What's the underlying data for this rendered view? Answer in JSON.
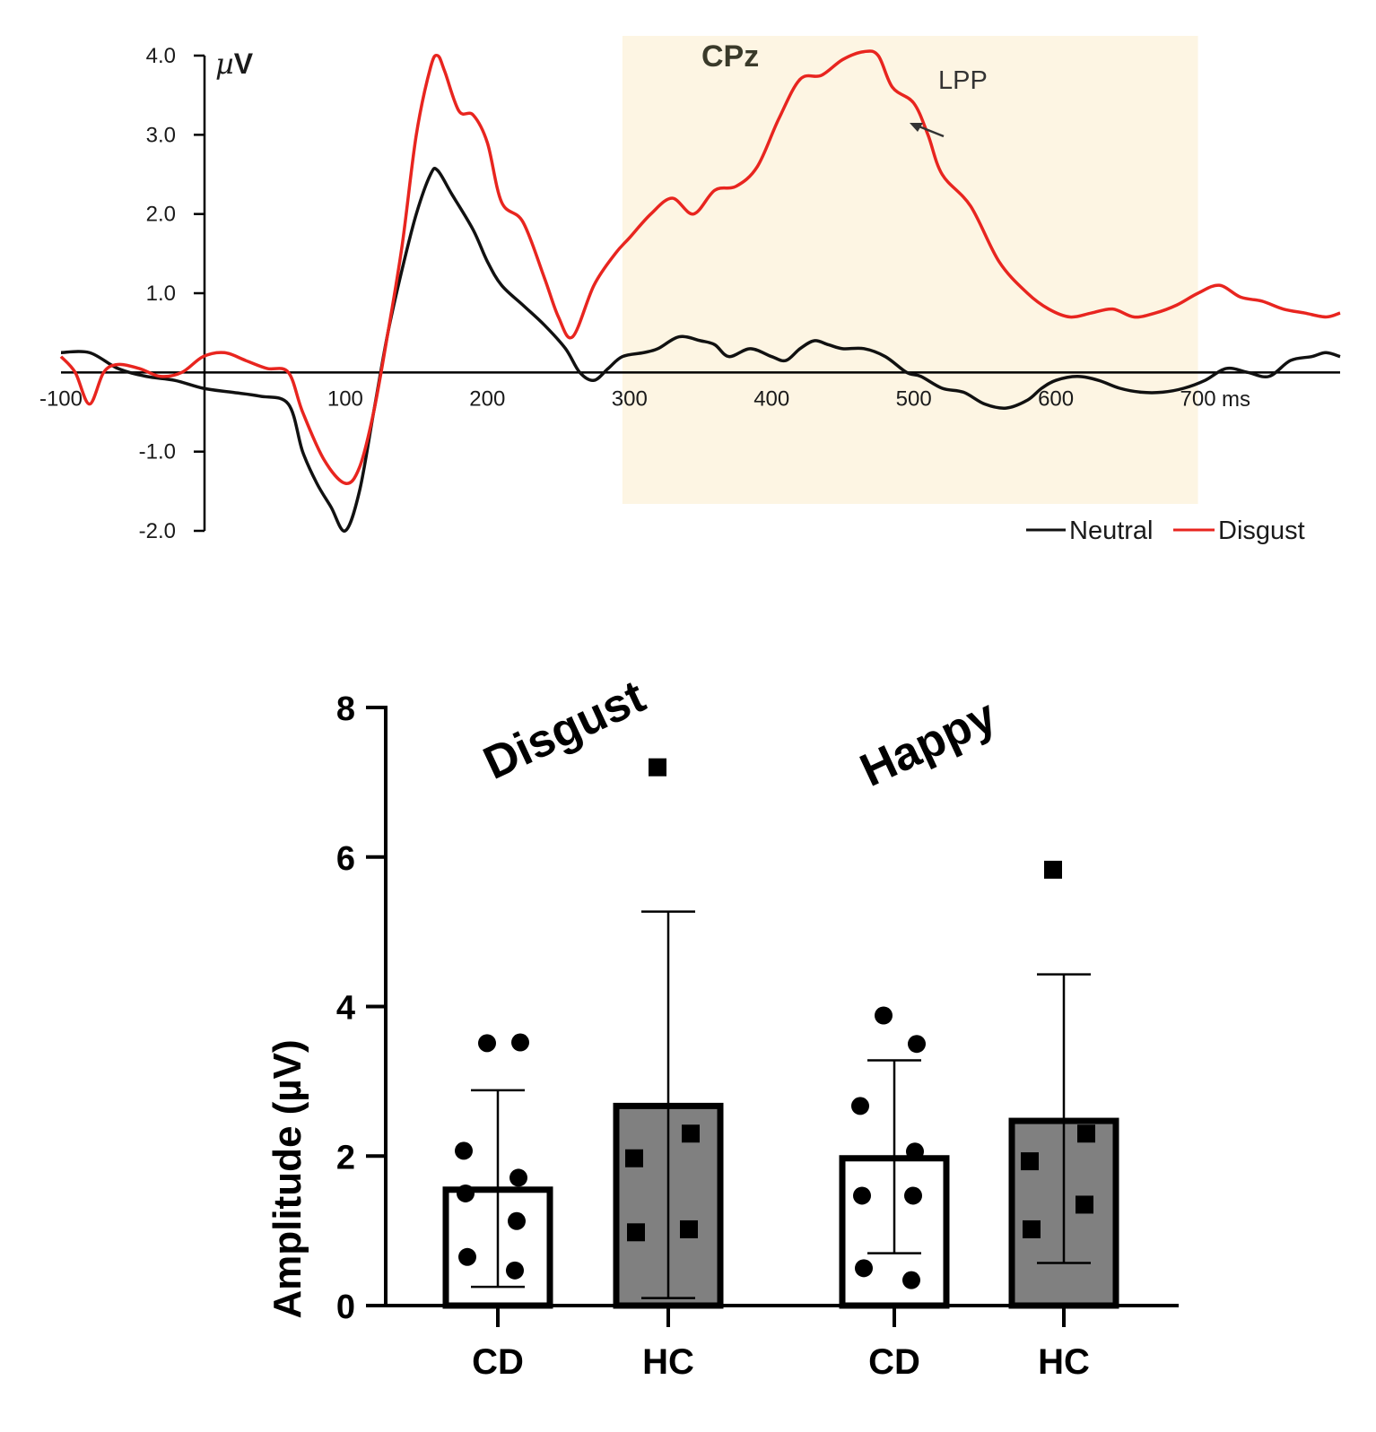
{
  "chart_data": [
    {
      "type": "line",
      "title": "CPz",
      "xlabel": "ms",
      "ylabel": "µV",
      "xlim": [
        -100,
        800
      ],
      "ylim": [
        -2.0,
        4.0
      ],
      "x_ticks": [
        "-100",
        "100",
        "200",
        "300",
        "400",
        "500",
        "600",
        "700"
      ],
      "y_ticks": [
        "4.0",
        "3.0",
        "2.0",
        "1.0",
        "-1.0",
        "-2.0"
      ],
      "shaded_window": [
        295,
        700
      ],
      "annotation": "LPP",
      "legend": "bottom-right",
      "grid": false,
      "series": [
        {
          "name": "Neutral",
          "color": "#111111",
          "points": [
            [
              -100,
              0.25
            ],
            [
              -80,
              0.25
            ],
            [
              -60,
              0.05
            ],
            [
              -40,
              -0.05
            ],
            [
              -20,
              -0.1
            ],
            [
              0,
              -0.2
            ],
            [
              20,
              -0.25
            ],
            [
              40,
              -0.3
            ],
            [
              60,
              -0.4
            ],
            [
              70,
              -1.0
            ],
            [
              80,
              -1.4
            ],
            [
              90,
              -1.7
            ],
            [
              100,
              -2.0
            ],
            [
              110,
              -1.5
            ],
            [
              120,
              -0.5
            ],
            [
              130,
              0.5
            ],
            [
              140,
              1.3
            ],
            [
              150,
              2.0
            ],
            [
              160,
              2.5
            ],
            [
              165,
              2.55
            ],
            [
              175,
              2.25
            ],
            [
              190,
              1.8
            ],
            [
              200,
              1.4
            ],
            [
              210,
              1.1
            ],
            [
              225,
              0.85
            ],
            [
              240,
              0.6
            ],
            [
              255,
              0.3
            ],
            [
              265,
              0.0
            ],
            [
              275,
              -0.1
            ],
            [
              285,
              0.05
            ],
            [
              295,
              0.2
            ],
            [
              310,
              0.25
            ],
            [
              320,
              0.3
            ],
            [
              335,
              0.45
            ],
            [
              350,
              0.4
            ],
            [
              360,
              0.35
            ],
            [
              370,
              0.2
            ],
            [
              385,
              0.3
            ],
            [
              400,
              0.2
            ],
            [
              410,
              0.15
            ],
            [
              420,
              0.3
            ],
            [
              430,
              0.4
            ],
            [
              440,
              0.35
            ],
            [
              450,
              0.3
            ],
            [
              465,
              0.3
            ],
            [
              480,
              0.2
            ],
            [
              495,
              0.0
            ],
            [
              505,
              -0.05
            ],
            [
              520,
              -0.2
            ],
            [
              535,
              -0.25
            ],
            [
              550,
              -0.4
            ],
            [
              565,
              -0.45
            ],
            [
              580,
              -0.35
            ],
            [
              590,
              -0.2
            ],
            [
              600,
              -0.1
            ],
            [
              615,
              -0.05
            ],
            [
              630,
              -0.1
            ],
            [
              645,
              -0.2
            ],
            [
              660,
              -0.25
            ],
            [
              675,
              -0.25
            ],
            [
              690,
              -0.2
            ],
            [
              705,
              -0.1
            ],
            [
              720,
              0.05
            ],
            [
              735,
              0.0
            ],
            [
              750,
              -0.05
            ],
            [
              765,
              0.15
            ],
            [
              780,
              0.2
            ],
            [
              790,
              0.25
            ],
            [
              800,
              0.2
            ]
          ]
        },
        {
          "name": "Disgust",
          "color": "#e8251f",
          "points": [
            [
              -100,
              0.2
            ],
            [
              -90,
              0.0
            ],
            [
              -80,
              -0.4
            ],
            [
              -70,
              0.0
            ],
            [
              -60,
              0.1
            ],
            [
              -45,
              0.05
            ],
            [
              -30,
              -0.05
            ],
            [
              -15,
              0.0
            ],
            [
              0,
              0.2
            ],
            [
              15,
              0.25
            ],
            [
              30,
              0.15
            ],
            [
              45,
              0.05
            ],
            [
              60,
              0.0
            ],
            [
              70,
              -0.5
            ],
            [
              85,
              -1.1
            ],
            [
              100,
              -1.4
            ],
            [
              110,
              -1.2
            ],
            [
              120,
              -0.5
            ],
            [
              130,
              0.5
            ],
            [
              140,
              1.6
            ],
            [
              150,
              3.0
            ],
            [
              160,
              3.85
            ],
            [
              165,
              4.0
            ],
            [
              170,
              3.8
            ],
            [
              180,
              3.3
            ],
            [
              190,
              3.25
            ],
            [
              200,
              2.9
            ],
            [
              210,
              2.15
            ],
            [
              225,
              1.9
            ],
            [
              240,
              1.2
            ],
            [
              250,
              0.7
            ],
            [
              260,
              0.45
            ],
            [
              275,
              1.1
            ],
            [
              290,
              1.5
            ],
            [
              300,
              1.7
            ],
            [
              315,
              2.0
            ],
            [
              330,
              2.2
            ],
            [
              345,
              2.0
            ],
            [
              360,
              2.3
            ],
            [
              375,
              2.35
            ],
            [
              390,
              2.6
            ],
            [
              405,
              3.2
            ],
            [
              420,
              3.7
            ],
            [
              435,
              3.75
            ],
            [
              450,
              3.95
            ],
            [
              465,
              4.05
            ],
            [
              475,
              4.0
            ],
            [
              485,
              3.6
            ],
            [
              500,
              3.4
            ],
            [
              510,
              3.0
            ],
            [
              520,
              2.5
            ],
            [
              540,
              2.1
            ],
            [
              560,
              1.4
            ],
            [
              580,
              1.0
            ],
            [
              595,
              0.8
            ],
            [
              610,
              0.7
            ],
            [
              625,
              0.75
            ],
            [
              640,
              0.8
            ],
            [
              655,
              0.7
            ],
            [
              670,
              0.75
            ],
            [
              685,
              0.85
            ],
            [
              700,
              1.0
            ],
            [
              715,
              1.1
            ],
            [
              730,
              0.95
            ],
            [
              745,
              0.9
            ],
            [
              760,
              0.8
            ],
            [
              775,
              0.75
            ],
            [
              790,
              0.7
            ],
            [
              800,
              0.75
            ]
          ]
        }
      ]
    },
    {
      "type": "bar",
      "ylabel": "Amplitude (µV)",
      "ylim": [
        0,
        8
      ],
      "y_ticks": [
        "0",
        "2",
        "4",
        "6",
        "8"
      ],
      "groups": [
        "Disgust",
        "Happy"
      ],
      "categories": [
        "CD",
        "HC",
        "CD",
        "HC"
      ],
      "values": [
        1.55,
        2.67,
        1.97,
        2.47
      ],
      "errors": [
        [
          0.25,
          2.88
        ],
        [
          0.1,
          5.27
        ],
        [
          0.7,
          3.28
        ],
        [
          0.57,
          4.43
        ]
      ],
      "fills": [
        "#ffffff",
        "#808080",
        "#ffffff",
        "#808080"
      ],
      "markers": [
        "circle",
        "square",
        "circle",
        "square"
      ],
      "points": [
        [
          3.51,
          3.52,
          2.07,
          1.71,
          1.5,
          1.13,
          0.65,
          0.47
        ],
        [
          7.2,
          2.3,
          1.97,
          1.02,
          0.98
        ],
        [
          3.88,
          3.5,
          2.67,
          2.06,
          1.47,
          1.47,
          0.5,
          0.34
        ],
        [
          5.83,
          2.3,
          1.93,
          1.35,
          1.02
        ]
      ],
      "grid": false
    }
  ]
}
